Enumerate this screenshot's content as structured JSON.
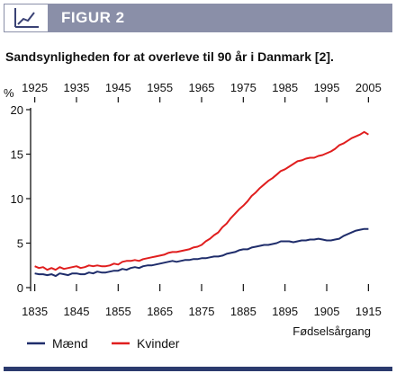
{
  "header": {
    "title": "FIGUR 2",
    "icon": "line-chart-icon",
    "background_color": "#8a8fa8"
  },
  "colors": {
    "maend": "#1f2d6b",
    "kvinder": "#e01e1e",
    "bottom_bar": "#2b3a6e"
  },
  "chart_data": {
    "type": "line",
    "title": "Sandsynligheden for at overleve til 90 år i Danmark [2].",
    "ylabel": "%",
    "xlabel": "Fødselsårgang",
    "ylim": [
      0,
      20
    ],
    "xlim": [
      1834,
      1916
    ],
    "grid": false,
    "legend_position": "bottom-left",
    "y_ticks": [
      0,
      5,
      10,
      15,
      20
    ],
    "x_ticks_bottom": [
      1835,
      1845,
      1855,
      1865,
      1875,
      1885,
      1895,
      1905,
      1915
    ],
    "x_ticks_top": [
      1925,
      1935,
      1945,
      1955,
      1965,
      1975,
      1985,
      1995,
      2005
    ],
    "series": [
      {
        "name": "Mænd",
        "color": "#1f2d6b",
        "x": [
          1835,
          1836,
          1837,
          1838,
          1839,
          1840,
          1841,
          1842,
          1843,
          1844,
          1845,
          1846,
          1847,
          1848,
          1849,
          1850,
          1851,
          1852,
          1853,
          1854,
          1855,
          1856,
          1857,
          1858,
          1859,
          1860,
          1861,
          1862,
          1863,
          1864,
          1865,
          1866,
          1867,
          1868,
          1869,
          1870,
          1871,
          1872,
          1873,
          1874,
          1875,
          1876,
          1877,
          1878,
          1879,
          1880,
          1881,
          1882,
          1883,
          1884,
          1885,
          1886,
          1887,
          1888,
          1889,
          1890,
          1891,
          1892,
          1893,
          1894,
          1895,
          1896,
          1897,
          1898,
          1899,
          1900,
          1901,
          1902,
          1903,
          1904,
          1905,
          1906,
          1907,
          1908,
          1909,
          1910,
          1911,
          1912,
          1913,
          1914,
          1915
        ],
        "values": [
          1.6,
          1.5,
          1.5,
          1.4,
          1.5,
          1.3,
          1.6,
          1.5,
          1.4,
          1.6,
          1.6,
          1.5,
          1.5,
          1.7,
          1.6,
          1.8,
          1.7,
          1.7,
          1.8,
          1.9,
          1.9,
          2.1,
          2.0,
          2.2,
          2.3,
          2.2,
          2.4,
          2.5,
          2.5,
          2.6,
          2.7,
          2.8,
          2.9,
          3.0,
          2.9,
          3.0,
          3.1,
          3.1,
          3.2,
          3.2,
          3.3,
          3.3,
          3.4,
          3.5,
          3.5,
          3.6,
          3.8,
          3.9,
          4.0,
          4.2,
          4.3,
          4.3,
          4.5,
          4.6,
          4.7,
          4.8,
          4.8,
          4.9,
          5.0,
          5.2,
          5.2,
          5.2,
          5.1,
          5.2,
          5.3,
          5.3,
          5.4,
          5.4,
          5.5,
          5.4,
          5.3,
          5.3,
          5.4,
          5.5,
          5.8,
          6.0,
          6.2,
          6.4,
          6.5,
          6.6,
          6.6
        ]
      },
      {
        "name": "Kvinder",
        "color": "#e01e1e",
        "x": [
          1835,
          1836,
          1837,
          1838,
          1839,
          1840,
          1841,
          1842,
          1843,
          1844,
          1845,
          1846,
          1847,
          1848,
          1849,
          1850,
          1851,
          1852,
          1853,
          1854,
          1855,
          1856,
          1857,
          1858,
          1859,
          1860,
          1861,
          1862,
          1863,
          1864,
          1865,
          1866,
          1867,
          1868,
          1869,
          1870,
          1871,
          1872,
          1873,
          1874,
          1875,
          1876,
          1877,
          1878,
          1879,
          1880,
          1881,
          1882,
          1883,
          1884,
          1885,
          1886,
          1887,
          1888,
          1889,
          1890,
          1891,
          1892,
          1893,
          1894,
          1895,
          1896,
          1897,
          1898,
          1899,
          1900,
          1901,
          1902,
          1903,
          1904,
          1905,
          1906,
          1907,
          1908,
          1909,
          1910,
          1911,
          1912,
          1913,
          1914,
          1915
        ],
        "values": [
          2.4,
          2.2,
          2.3,
          2.0,
          2.2,
          2.0,
          2.3,
          2.1,
          2.2,
          2.3,
          2.4,
          2.2,
          2.3,
          2.5,
          2.4,
          2.5,
          2.4,
          2.4,
          2.5,
          2.7,
          2.6,
          2.9,
          3.0,
          3.0,
          3.1,
          3.0,
          3.2,
          3.3,
          3.4,
          3.5,
          3.6,
          3.7,
          3.9,
          4.0,
          4.0,
          4.1,
          4.2,
          4.3,
          4.5,
          4.6,
          4.8,
          5.2,
          5.5,
          5.9,
          6.2,
          6.8,
          7.2,
          7.8,
          8.3,
          8.8,
          9.2,
          9.7,
          10.3,
          10.7,
          11.2,
          11.6,
          12.0,
          12.3,
          12.7,
          13.1,
          13.3,
          13.6,
          13.9,
          14.2,
          14.3,
          14.5,
          14.6,
          14.6,
          14.8,
          14.9,
          15.1,
          15.3,
          15.6,
          16.0,
          16.2,
          16.5,
          16.8,
          17.0,
          17.2,
          17.5,
          17.2
        ]
      }
    ]
  }
}
